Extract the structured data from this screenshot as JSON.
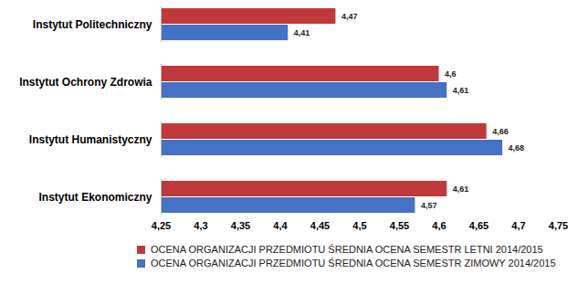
{
  "chart_data": {
    "type": "bar",
    "orientation": "horizontal",
    "categories": [
      "Instytut Politechniczny",
      "Instytut Ochrony Zdrowia",
      "Instytut Humanistyczny",
      "Instytut Ekonomiczny"
    ],
    "series": [
      {
        "name": "OCENA ORGANIZACJI PRZEDMIOTU ŚREDNIA OCENA SEMESTR LETNI 2014/2015",
        "color": "#c0393b",
        "values": [
          4.47,
          4.6,
          4.66,
          4.61
        ],
        "value_labels": [
          "4,47",
          "4,6",
          "4,66",
          "4,61"
        ]
      },
      {
        "name": "OCENA ORGANIZACJI PRZEDMIOTU ŚREDNIA OCENA SEMESTR ZIMOWY 2014/2015",
        "color": "#4472c4",
        "values": [
          4.41,
          4.61,
          4.68,
          4.57
        ],
        "value_labels": [
          "4,41",
          "4,61",
          "4,68",
          "4,57"
        ]
      }
    ],
    "xlim": [
      4.25,
      4.75
    ],
    "xticks": [
      {
        "value": 4.25,
        "label": "4,25"
      },
      {
        "value": 4.3,
        "label": "4,3"
      },
      {
        "value": 4.35,
        "label": "4,35"
      },
      {
        "value": 4.4,
        "label": "4,4"
      },
      {
        "value": 4.45,
        "label": "4,45"
      },
      {
        "value": 4.5,
        "label": "4,5"
      },
      {
        "value": 4.55,
        "label": "4,55"
      },
      {
        "value": 4.6,
        "label": "4,6"
      },
      {
        "value": 4.65,
        "label": "4,65"
      },
      {
        "value": 4.7,
        "label": "4,7"
      },
      {
        "value": 4.75,
        "label": "4,75"
      }
    ],
    "grid": false,
    "data_labels": true,
    "legend": "bottom"
  }
}
